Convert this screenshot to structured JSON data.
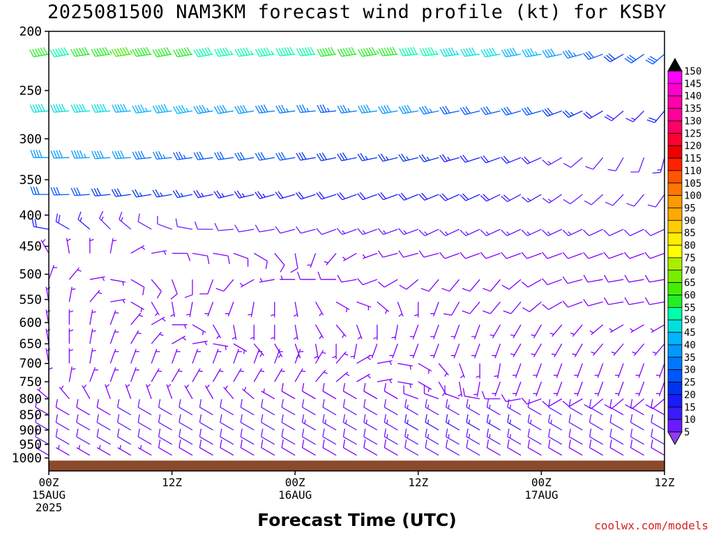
{
  "title": "2025081500 NAM3KM forecast wind profile (kt) for KSBY",
  "credit": "coolwx.com/models",
  "chart_data": {
    "type": "wind-barb-profile",
    "title": "2025081500 NAM3KM forecast wind profile (kt) for KSBY",
    "xlabel": "Forecast Time (UTC)",
    "ylabel": "",
    "y_axis": {
      "scale": "log",
      "range": [
        200,
        1050
      ],
      "ticks": [
        200,
        250,
        300,
        350,
        400,
        450,
        500,
        550,
        600,
        650,
        700,
        750,
        800,
        850,
        900,
        950,
        1000
      ]
    },
    "x_axis": {
      "range_hours": [
        0,
        60
      ],
      "ticks": [
        {
          "hour": 0,
          "line1": "00Z",
          "line2": "15AUG",
          "line3": "2025"
        },
        {
          "hour": 12,
          "line1": "12Z",
          "line2": "",
          "line3": ""
        },
        {
          "hour": 24,
          "line1": "00Z",
          "line2": "16AUG",
          "line3": ""
        },
        {
          "hour": 36,
          "line1": "12Z",
          "line2": "",
          "line3": ""
        },
        {
          "hour": 48,
          "line1": "00Z",
          "line2": "17AUG",
          "line3": ""
        },
        {
          "hour": 60,
          "line1": "12Z",
          "line2": "",
          "line3": ""
        }
      ]
    },
    "ground_color": "#8b4a2b",
    "colorbar": {
      "levels": [
        5,
        10,
        15,
        20,
        25,
        30,
        35,
        40,
        45,
        50,
        55,
        60,
        65,
        70,
        75,
        80,
        85,
        90,
        95,
        100,
        105,
        110,
        115,
        120,
        125,
        130,
        135,
        140,
        145,
        150
      ],
      "colors": [
        "#7f00ff",
        "#6a1aff",
        "#3a1aff",
        "#1a1aff",
        "#0033ee",
        "#0055ff",
        "#0077ff",
        "#0099ff",
        "#00b5ff",
        "#00e0dd",
        "#00ffaa",
        "#22ee22",
        "#44ee00",
        "#77ee00",
        "#aaee00",
        "#ffff00",
        "#ffee00",
        "#ffcc00",
        "#ffaa00",
        "#ff9900",
        "#ff7700",
        "#ff5500",
        "#ff2200",
        "#ee0000",
        "#ff0033",
        "#ff0066",
        "#ff0099",
        "#ff00aa",
        "#ff00cc",
        "#ff00ff"
      ],
      "under_color": "#8f3cf0",
      "over_color": "#000000"
    },
    "hours": [
      0,
      2,
      4,
      6,
      8,
      10,
      12,
      14,
      16,
      18,
      20,
      22,
      24,
      26,
      28,
      30,
      32,
      34,
      36,
      38,
      40,
      42,
      44,
      46,
      48,
      50,
      52,
      54,
      56,
      58,
      60
    ],
    "series": [
      {
        "level": 218,
        "speed": [
          60,
          58,
          62,
          64,
          66,
          62,
          60,
          60,
          58,
          56,
          56,
          56,
          58,
          58,
          60,
          62,
          64,
          60,
          58,
          56,
          54,
          52,
          50,
          48,
          46,
          40,
          35,
          30,
          28,
          30,
          32
        ],
        "direction": [
          260,
          260,
          262,
          262,
          262,
          262,
          260,
          260,
          260,
          262,
          262,
          262,
          264,
          264,
          262,
          262,
          262,
          264,
          264,
          264,
          262,
          262,
          260,
          260,
          260,
          258,
          255,
          250,
          240,
          235,
          230
        ]
      },
      {
        "level": 270,
        "speed": [
          50,
          52,
          52,
          50,
          48,
          46,
          48,
          46,
          44,
          42,
          40,
          38,
          36,
          36,
          34,
          36,
          40,
          42,
          40,
          36,
          32,
          30,
          30,
          30,
          30,
          28,
          25,
          22,
          18,
          15,
          20
        ],
        "direction": [
          265,
          265,
          265,
          265,
          265,
          262,
          262,
          260,
          260,
          260,
          260,
          262,
          262,
          264,
          264,
          262,
          262,
          260,
          260,
          258,
          258,
          256,
          256,
          254,
          254,
          250,
          245,
          240,
          230,
          225,
          220
        ]
      },
      {
        "level": 322,
        "speed": [
          42,
          40,
          44,
          42,
          40,
          38,
          36,
          34,
          32,
          30,
          30,
          30,
          30,
          28,
          28,
          28,
          26,
          26,
          26,
          26,
          24,
          22,
          20,
          20,
          18,
          14,
          12,
          10,
          10,
          12,
          15
        ],
        "direction": [
          270,
          268,
          268,
          266,
          266,
          264,
          264,
          262,
          262,
          262,
          260,
          260,
          260,
          260,
          258,
          258,
          258,
          256,
          256,
          254,
          254,
          252,
          250,
          248,
          246,
          240,
          230,
          220,
          210,
          200,
          195
        ]
      },
      {
        "level": 370,
        "speed": [
          30,
          30,
          30,
          28,
          28,
          26,
          26,
          26,
          24,
          24,
          24,
          24,
          22,
          22,
          22,
          22,
          22,
          22,
          20,
          20,
          20,
          20,
          18,
          18,
          16,
          14,
          12,
          10,
          10,
          10,
          12
        ],
        "direction": [
          270,
          268,
          266,
          264,
          262,
          260,
          260,
          258,
          258,
          256,
          256,
          254,
          254,
          252,
          252,
          250,
          250,
          250,
          248,
          248,
          246,
          246,
          244,
          242,
          240,
          236,
          232,
          228,
          224,
          220,
          215
        ]
      },
      {
        "level": 422,
        "speed": [
          20,
          18,
          16,
          14,
          14,
          12,
          12,
          12,
          12,
          12,
          12,
          12,
          12,
          12,
          12,
          14,
          14,
          14,
          14,
          14,
          14,
          14,
          14,
          14,
          14,
          14,
          14,
          12,
          12,
          12,
          12
        ],
        "direction": [
          280,
          300,
          310,
          315,
          310,
          300,
          290,
          280,
          270,
          265,
          260,
          260,
          255,
          255,
          250,
          250,
          250,
          250,
          250,
          245,
          245,
          245,
          245,
          245,
          245,
          245,
          245,
          245,
          245,
          245,
          245
        ]
      },
      {
        "level": 462,
        "speed": [
          5,
          5,
          6,
          6,
          7,
          7,
          8,
          8,
          8,
          8,
          8,
          8,
          8,
          6,
          6,
          6,
          6,
          8,
          8,
          8,
          8,
          8,
          8,
          8,
          8,
          8,
          8,
          8,
          8,
          8,
          8
        ],
        "direction": [
          330,
          350,
          360,
          10,
          60,
          80,
          90,
          100,
          100,
          110,
          120,
          140,
          170,
          200,
          220,
          240,
          250,
          255,
          255,
          255,
          250,
          250,
          250,
          250,
          250,
          250,
          250,
          250,
          250,
          250,
          250
        ]
      },
      {
        "level": 510,
        "speed": [
          5,
          6,
          6,
          7,
          8,
          8,
          8,
          8,
          8,
          8,
          6,
          6,
          6,
          8,
          8,
          8,
          8,
          8,
          8,
          8,
          8,
          8,
          8,
          8,
          8,
          8,
          8,
          8,
          8,
          8,
          8
        ],
        "direction": [
          20,
          40,
          80,
          100,
          120,
          140,
          160,
          180,
          200,
          220,
          240,
          260,
          270,
          270,
          270,
          260,
          250,
          240,
          230,
          220,
          220,
          220,
          220,
          230,
          240,
          250,
          255,
          260,
          260,
          260,
          260
        ]
      },
      {
        "level": 555,
        "speed": [
          5,
          5,
          6,
          6,
          6,
          6,
          6,
          6,
          6,
          6,
          6,
          6,
          6,
          6,
          6,
          6,
          6,
          6,
          6,
          6,
          8,
          8,
          8,
          8,
          8,
          8,
          8,
          8,
          8,
          8,
          8
        ],
        "direction": [
          350,
          10,
          40,
          80,
          120,
          150,
          170,
          190,
          200,
          200,
          190,
          180,
          170,
          150,
          120,
          110,
          130,
          160,
          180,
          200,
          210,
          220,
          220,
          220,
          230,
          240,
          250,
          255,
          260,
          260,
          260
        ]
      },
      {
        "level": 605,
        "speed": [
          5,
          5,
          6,
          6,
          6,
          6,
          6,
          6,
          6,
          6,
          6,
          6,
          6,
          6,
          6,
          6,
          6,
          6,
          6,
          6,
          6,
          6,
          6,
          6,
          6,
          6,
          6,
          6,
          6,
          6,
          6
        ],
        "direction": [
          350,
          360,
          10,
          20,
          40,
          60,
          90,
          120,
          150,
          170,
          180,
          180,
          170,
          150,
          140,
          160,
          180,
          190,
          200,
          200,
          200,
          200,
          210,
          210,
          210,
          220,
          220,
          230,
          240,
          240,
          240
        ]
      },
      {
        "level": 650,
        "speed": [
          5,
          5,
          5,
          6,
          6,
          6,
          6,
          6,
          6,
          6,
          6,
          6,
          6,
          6,
          6,
          6,
          6,
          6,
          6,
          6,
          6,
          6,
          6,
          6,
          6,
          6,
          6,
          6,
          6,
          6,
          6
        ],
        "direction": [
          350,
          360,
          10,
          20,
          30,
          40,
          60,
          80,
          100,
          120,
          140,
          150,
          160,
          170,
          180,
          190,
          200,
          200,
          200,
          200,
          200,
          200,
          200,
          210,
          210,
          210,
          210,
          220,
          220,
          220,
          220
        ]
      },
      {
        "level": 700,
        "speed": [
          5,
          5,
          6,
          6,
          6,
          6,
          6,
          6,
          6,
          6,
          6,
          6,
          6,
          6,
          6,
          6,
          6,
          6,
          6,
          6,
          6,
          6,
          6,
          6,
          6,
          6,
          6,
          6,
          6,
          6,
          6
        ],
        "direction": [
          350,
          360,
          10,
          20,
          20,
          20,
          20,
          20,
          20,
          20,
          20,
          20,
          20,
          30,
          40,
          60,
          80,
          100,
          120,
          140,
          160,
          180,
          190,
          200,
          200,
          200,
          200,
          200,
          200,
          200,
          200
        ]
      },
      {
        "level": 750,
        "speed": [
          5,
          6,
          6,
          6,
          6,
          6,
          6,
          6,
          6,
          6,
          6,
          6,
          6,
          6,
          6,
          6,
          6,
          6,
          6,
          6,
          6,
          6,
          6,
          6,
          6,
          6,
          6,
          6,
          6,
          6,
          6
        ],
        "direction": [
          360,
          10,
          20,
          20,
          20,
          30,
          30,
          30,
          30,
          30,
          30,
          30,
          30,
          40,
          50,
          60,
          80,
          100,
          120,
          150,
          170,
          190,
          200,
          200,
          200,
          200,
          200,
          200,
          200,
          200,
          200
        ]
      },
      {
        "level": 800,
        "speed": [
          6,
          6,
          6,
          6,
          6,
          6,
          6,
          6,
          6,
          6,
          6,
          6,
          8,
          8,
          8,
          8,
          8,
          8,
          8,
          8,
          8,
          8,
          8,
          8,
          8,
          8,
          8,
          8,
          8,
          8,
          8
        ],
        "direction": [
          310,
          320,
          330,
          340,
          340,
          340,
          340,
          330,
          330,
          320,
          310,
          300,
          300,
          300,
          300,
          300,
          300,
          300,
          290,
          290,
          290,
          280,
          270,
          260,
          250,
          240,
          240,
          230,
          230,
          230,
          230
        ]
      },
      {
        "level": 850,
        "speed": [
          8,
          8,
          8,
          8,
          10,
          10,
          10,
          10,
          12,
          12,
          12,
          12,
          12,
          12,
          12,
          12,
          12,
          12,
          14,
          14,
          14,
          14,
          14,
          14,
          12,
          12,
          10,
          10,
          8,
          8,
          8
        ],
        "direction": [
          300,
          300,
          300,
          300,
          300,
          300,
          300,
          300,
          300,
          300,
          300,
          300,
          300,
          300,
          300,
          300,
          300,
          300,
          300,
          300,
          300,
          300,
          300,
          300,
          300,
          300,
          300,
          300,
          300,
          300,
          300
        ]
      },
      {
        "level": 900,
        "speed": [
          10,
          10,
          10,
          12,
          12,
          12,
          12,
          12,
          12,
          12,
          12,
          12,
          12,
          14,
          14,
          14,
          14,
          14,
          16,
          16,
          16,
          16,
          16,
          16,
          14,
          14,
          12,
          12,
          10,
          10,
          10
        ],
        "direction": [
          300,
          300,
          300,
          300,
          300,
          300,
          300,
          300,
          300,
          300,
          300,
          300,
          300,
          300,
          300,
          300,
          300,
          300,
          300,
          300,
          300,
          300,
          300,
          300,
          300,
          300,
          300,
          300,
          300,
          300,
          300
        ]
      },
      {
        "level": 950,
        "speed": [
          10,
          10,
          10,
          10,
          10,
          10,
          10,
          10,
          10,
          10,
          10,
          10,
          10,
          12,
          12,
          12,
          12,
          14,
          14,
          14,
          14,
          14,
          14,
          14,
          12,
          12,
          10,
          10,
          10,
          10,
          10
        ],
        "direction": [
          300,
          300,
          300,
          300,
          300,
          300,
          300,
          300,
          300,
          300,
          300,
          300,
          300,
          300,
          300,
          300,
          300,
          300,
          300,
          300,
          300,
          300,
          300,
          300,
          300,
          300,
          300,
          300,
          300,
          300,
          300
        ]
      },
      {
        "level": 990,
        "speed": [
          6,
          6,
          6,
          6,
          6,
          6,
          8,
          8,
          8,
          8,
          8,
          8,
          8,
          8,
          8,
          8,
          8,
          8,
          10,
          10,
          10,
          10,
          8,
          8,
          8,
          8,
          8,
          8,
          8,
          8,
          8
        ],
        "direction": [
          300,
          300,
          300,
          300,
          300,
          300,
          300,
          300,
          300,
          300,
          300,
          300,
          300,
          300,
          300,
          300,
          300,
          300,
          300,
          300,
          300,
          300,
          300,
          300,
          300,
          300,
          300,
          300,
          300,
          300,
          300
        ]
      }
    ]
  }
}
